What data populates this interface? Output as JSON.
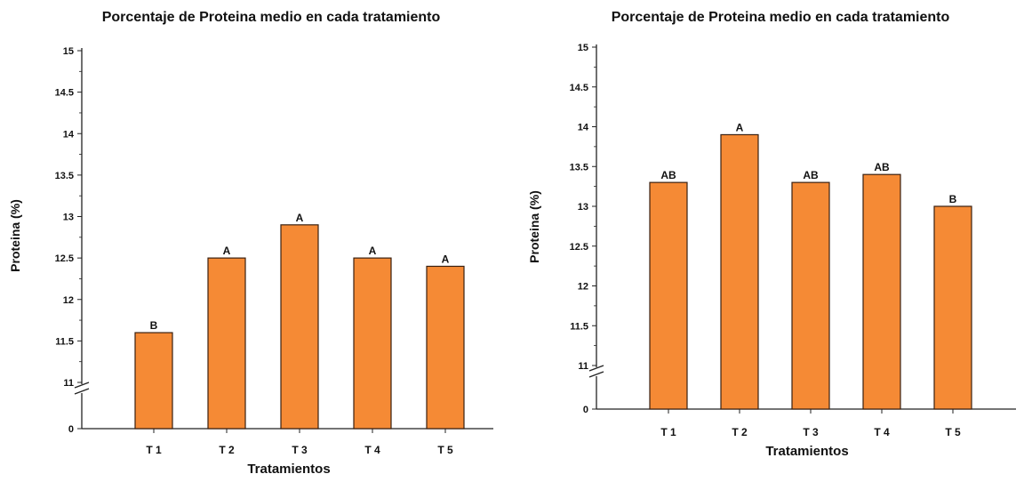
{
  "chart_data": [
    {
      "type": "bar",
      "title": "Porcentaje de Proteina medio en cada tratamiento",
      "xlabel": "Tratamientos",
      "ylabel": "Proteina (%)",
      "categories": [
        "T 1",
        "T 2",
        "T 3",
        "T 4",
        "T 5"
      ],
      "values": [
        11.6,
        12.5,
        12.9,
        12.5,
        12.4
      ],
      "letters": [
        "B",
        "A",
        "A",
        "A",
        "A"
      ],
      "yticks": [
        "15",
        "14.5",
        "14",
        "13.5",
        "13",
        "12.5",
        "12",
        "11.5",
        "11",
        "0"
      ],
      "ylim": [
        11,
        15
      ],
      "axis_break": true,
      "grid": false,
      "bar_color": "#f58a35",
      "bar_edge": "#3a2010"
    },
    {
      "type": "bar",
      "title": "Porcentaje de Proteina medio en cada tratamiento",
      "xlabel": "Tratamientos",
      "ylabel": "Proteina (%)",
      "categories": [
        "T 1",
        "T 2",
        "T 3",
        "T 4",
        "T 5"
      ],
      "values": [
        13.3,
        13.9,
        13.3,
        13.4,
        13.0
      ],
      "letters": [
        "AB",
        "A",
        "AB",
        "AB",
        "B"
      ],
      "yticks": [
        "15",
        "14.5",
        "14",
        "13.5",
        "13",
        "12.5",
        "12",
        "11.5",
        "11",
        "0"
      ],
      "ylim": [
        11,
        15
      ],
      "axis_break": true,
      "grid": false,
      "bar_color": "#f58a35",
      "bar_edge": "#3a2010"
    }
  ]
}
